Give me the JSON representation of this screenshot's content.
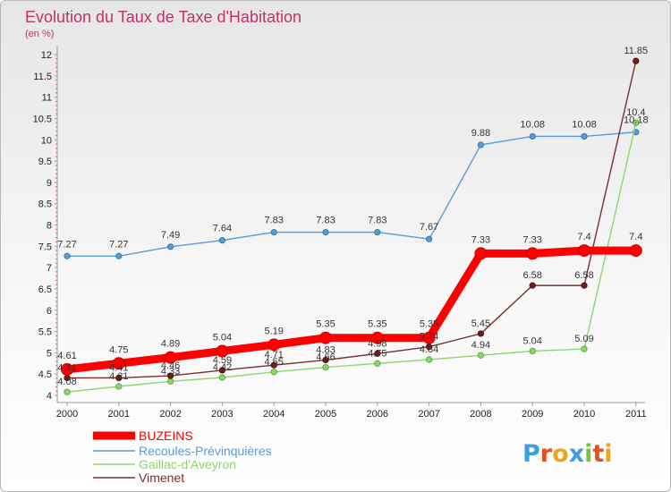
{
  "chart_data": {
    "type": "line",
    "title": "Evolution du Taux de Taxe d'Habitation",
    "subtitle": "(en %)",
    "xlabel": "",
    "ylabel": "",
    "x": [
      "2000",
      "2001",
      "2002",
      "2003",
      "2004",
      "2005",
      "2006",
      "2007",
      "2008",
      "2009",
      "2010",
      "2011"
    ],
    "ylim": [
      4,
      12
    ],
    "yticks": [
      "4",
      "4.5",
      "5",
      "5.5",
      "6",
      "6.5",
      "7",
      "7.5",
      "8",
      "8.5",
      "9",
      "9.5",
      "10",
      "10.5",
      "11",
      "11.5",
      "12"
    ],
    "grid": false,
    "legend_position": "bottom-left",
    "series": [
      {
        "name": "BUZEINS",
        "color": "#ff0000",
        "values": [
          4.61,
          4.75,
          4.89,
          5.04,
          5.19,
          5.35,
          5.35,
          5.35,
          7.33,
          7.33,
          7.4,
          7.4
        ],
        "labels": [
          "4.61",
          "4.75",
          "4.89",
          "5.04",
          "5.19",
          "5.35",
          "5.35",
          "5.35",
          "7.33",
          "7.33",
          "7.4",
          "7.4"
        ]
      },
      {
        "name": "Recoules-Prévinquières",
        "color": "#5b9bd5",
        "values": [
          7.27,
          7.27,
          7.49,
          7.64,
          7.83,
          7.83,
          7.83,
          7.67,
          9.88,
          10.08,
          10.08,
          10.18
        ],
        "labels": [
          "7.27",
          "7.27",
          "7.49",
          "7.64",
          "7.83",
          "7.83",
          "7.83",
          "7.67",
          "9.88",
          "10.08",
          "10.08",
          "10.18"
        ]
      },
      {
        "name": "Gaillac-d'Aveyron",
        "color": "#8ed66a",
        "values": [
          4.08,
          4.21,
          4.33,
          4.42,
          4.55,
          4.66,
          4.75,
          4.84,
          4.94,
          5.04,
          5.09,
          10.4
        ],
        "labels": [
          "4.08",
          "4.21",
          "4.33",
          "4.42",
          "4.55",
          "4.66",
          "4.75",
          "4.84",
          "4.94",
          "5.04",
          "5.09",
          "10.4"
        ]
      },
      {
        "name": "Vimenet",
        "color": "#7a2e2e",
        "values": [
          4.41,
          4.41,
          4.46,
          4.59,
          4.71,
          4.83,
          4.98,
          5.14,
          5.45,
          6.58,
          6.58,
          11.85
        ],
        "labels": [
          "4.41",
          "4.41",
          "4.46",
          "4.59",
          "4.71",
          "4.83",
          "4.98",
          "5.14",
          "5.45",
          "6.58",
          "6.58",
          "11.85"
        ]
      }
    ]
  },
  "logo": {
    "text": "Proxiti"
  }
}
